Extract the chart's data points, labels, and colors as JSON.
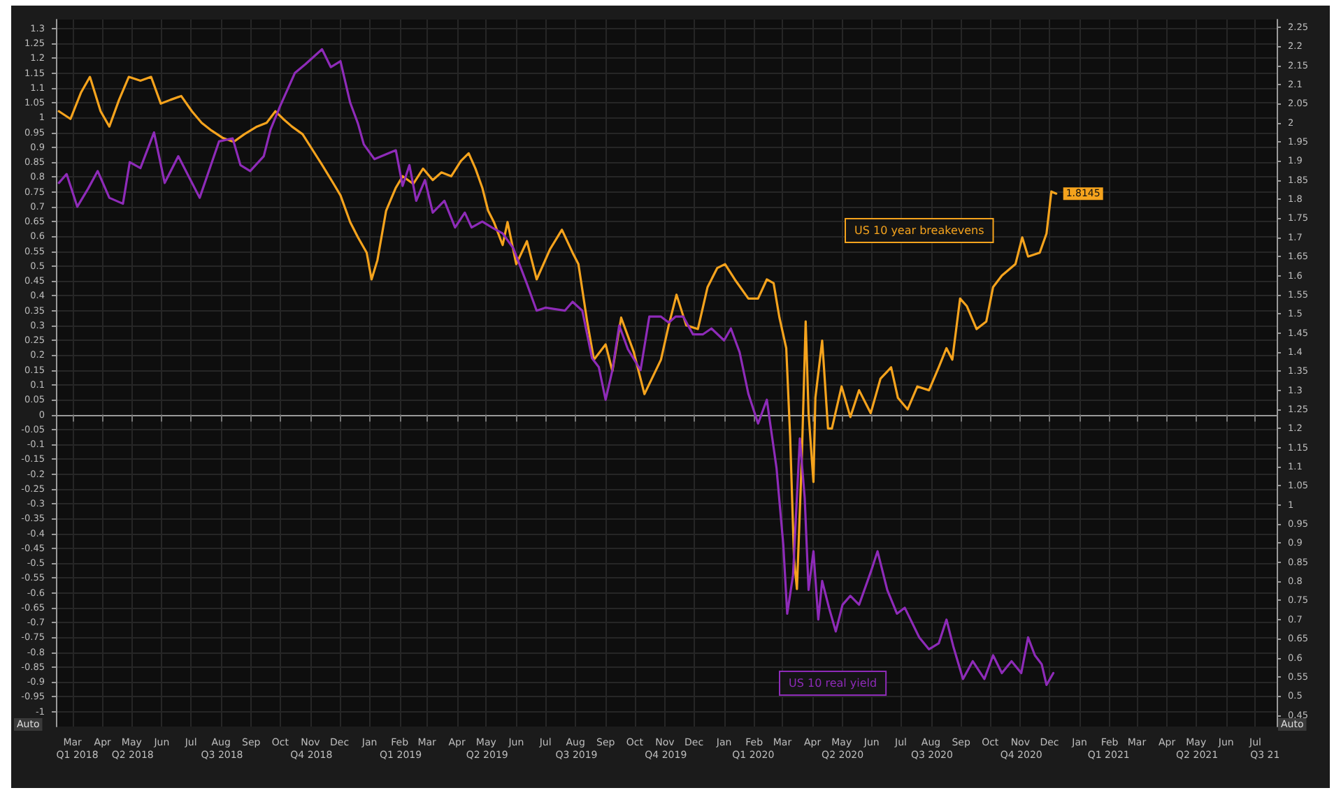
{
  "chart_data": {
    "type": "line",
    "annotations": [
      "Auto",
      "Auto"
    ],
    "xlim": [
      "2018-02-26",
      "2021-08-06"
    ],
    "xticks": [
      {
        "value": "2018-03-15",
        "label": "Mar"
      },
      {
        "value": "2018-04-15",
        "label": "Apr"
      },
      {
        "value": "2018-05-15",
        "label": "May"
      },
      {
        "value": "2018-06-15",
        "label": "Jun"
      },
      {
        "value": "2018-07-15",
        "label": "Jul"
      },
      {
        "value": "2018-08-15",
        "label": "Aug"
      },
      {
        "value": "2018-09-15",
        "label": "Sep"
      },
      {
        "value": "2018-10-15",
        "label": "Oct"
      },
      {
        "value": "2018-11-15",
        "label": "Nov"
      },
      {
        "value": "2018-12-15",
        "label": "Dec"
      },
      {
        "value": "2019-01-15",
        "label": "Jan"
      },
      {
        "value": "2019-02-15",
        "label": "Feb"
      },
      {
        "value": "2019-03-15",
        "label": "Mar"
      },
      {
        "value": "2019-04-15",
        "label": "Apr"
      },
      {
        "value": "2019-05-15",
        "label": "May"
      },
      {
        "value": "2019-06-15",
        "label": "Jun"
      },
      {
        "value": "2019-07-15",
        "label": "Jul"
      },
      {
        "value": "2019-08-15",
        "label": "Aug"
      },
      {
        "value": "2019-09-15",
        "label": "Sep"
      },
      {
        "value": "2019-10-15",
        "label": "Oct"
      },
      {
        "value": "2019-11-15",
        "label": "Nov"
      },
      {
        "value": "2019-12-15",
        "label": "Dec"
      },
      {
        "value": "2020-01-15",
        "label": "Jan"
      },
      {
        "value": "2020-02-15",
        "label": "Feb"
      },
      {
        "value": "2020-03-15",
        "label": "Mar"
      },
      {
        "value": "2020-04-15",
        "label": "Apr"
      },
      {
        "value": "2020-05-15",
        "label": "May"
      },
      {
        "value": "2020-06-15",
        "label": "Jun"
      },
      {
        "value": "2020-07-15",
        "label": "Jul"
      },
      {
        "value": "2020-08-15",
        "label": "Aug"
      },
      {
        "value": "2020-09-15",
        "label": "Sep"
      },
      {
        "value": "2020-10-15",
        "label": "Oct"
      },
      {
        "value": "2020-11-15",
        "label": "Nov"
      },
      {
        "value": "2020-12-15",
        "label": "Dec"
      },
      {
        "value": "2021-01-15",
        "label": "Jan"
      },
      {
        "value": "2021-02-15",
        "label": "Feb"
      },
      {
        "value": "2021-03-15",
        "label": "Mar"
      },
      {
        "value": "2021-04-15",
        "label": "Apr"
      },
      {
        "value": "2021-05-15",
        "label": "May"
      },
      {
        "value": "2021-06-15",
        "label": "Jun"
      },
      {
        "value": "2021-07-15",
        "label": "Jul"
      }
    ],
    "x2lim": [
      "2018-02-26",
      "2021-08-06"
    ],
    "x2ticks": [
      {
        "value": "2018-03-20",
        "label": "Q1 2018"
      },
      {
        "value": "2018-05-16",
        "label": "Q2 2018"
      },
      {
        "value": "2018-08-16",
        "label": "Q3 2018"
      },
      {
        "value": "2018-11-16",
        "label": "Q4 2018"
      },
      {
        "value": "2019-02-16",
        "label": "Q1 2019"
      },
      {
        "value": "2019-05-16",
        "label": "Q2 2019"
      },
      {
        "value": "2019-08-16",
        "label": "Q3 2019"
      },
      {
        "value": "2019-11-16",
        "label": "Q4 2019"
      },
      {
        "value": "2020-02-14",
        "label": "Q1 2020"
      },
      {
        "value": "2020-05-16",
        "label": "Q2 2020"
      },
      {
        "value": "2020-08-16",
        "label": "Q3 2020"
      },
      {
        "value": "2020-11-16",
        "label": "Q4 2020"
      },
      {
        "value": "2021-02-14",
        "label": "Q1 2021"
      },
      {
        "value": "2021-05-16",
        "label": "Q2 2021"
      },
      {
        "value": "2021-07-25",
        "label": "Q3 21"
      }
    ],
    "ylim": [
      -1.05,
      1.33
    ],
    "yticks": [
      -1,
      -0.95,
      -0.9,
      -0.85,
      -0.8,
      -0.75,
      -0.7,
      -0.65,
      -0.6,
      -0.55,
      -0.5,
      -0.45,
      -0.4,
      -0.35,
      -0.3,
      -0.25,
      -0.2,
      -0.15,
      -0.1,
      -0.05,
      0,
      0.05,
      0.1,
      0.15,
      0.2,
      0.25,
      0.3,
      0.35,
      0.4,
      0.45,
      0.5,
      0.55,
      0.6,
      0.65,
      0.7,
      0.75,
      0.8,
      0.85,
      0.9,
      0.95,
      1,
      1.05,
      1.1,
      1.15,
      1.2,
      1.25,
      1.3
    ],
    "y2lim": [
      0.42,
      2.27
    ],
    "y2ticks": [
      0.45,
      0.5,
      0.55,
      0.6,
      0.65,
      0.7,
      0.75,
      0.8,
      0.85,
      0.9,
      0.95,
      1,
      1.05,
      1.1,
      1.15,
      1.2,
      1.25,
      1.3,
      1.35,
      1.4,
      1.45,
      1.5,
      1.55,
      1.6,
      1.65,
      1.7,
      1.75,
      1.8,
      1.85,
      1.9,
      1.95,
      2,
      2.05,
      2.1,
      2.15,
      2.2,
      2.25
    ],
    "grid": true,
    "series": [
      {
        "name": "US 10 year breakevens",
        "color": "#f5a31d",
        "axis": "y2",
        "x": [
          "2018-03-01",
          "2018-03-13",
          "2018-03-24",
          "2018-04-02",
          "2018-04-13",
          "2018-04-22",
          "2018-05-02",
          "2018-05-12",
          "2018-05-24",
          "2018-06-04",
          "2018-06-14",
          "2018-06-24",
          "2018-07-05",
          "2018-07-16",
          "2018-07-26",
          "2018-08-05",
          "2018-08-17",
          "2018-08-28",
          "2018-09-08",
          "2018-09-21",
          "2018-10-01",
          "2018-10-10",
          "2018-10-18",
          "2018-10-27",
          "2018-11-07",
          "2018-11-17",
          "2018-11-27",
          "2018-12-09",
          "2018-12-16",
          "2018-12-26",
          "2019-01-03",
          "2019-01-12",
          "2019-01-17",
          "2019-01-23",
          "2019-02-01",
          "2019-02-11",
          "2019-02-18",
          "2019-03-01",
          "2019-03-11",
          "2019-03-21",
          "2019-03-30",
          "2019-04-09",
          "2019-04-19",
          "2019-04-27",
          "2019-05-04",
          "2019-05-11",
          "2019-05-17",
          "2019-05-23",
          "2019-06-01",
          "2019-06-06",
          "2019-06-15",
          "2019-06-26",
          "2019-07-06",
          "2019-07-20",
          "2019-08-01",
          "2019-08-12",
          "2019-08-18",
          "2019-08-27",
          "2019-09-03",
          "2019-09-15",
          "2019-09-22",
          "2019-10-01",
          "2019-10-14",
          "2019-10-25",
          "2019-11-11",
          "2019-11-19",
          "2019-11-27",
          "2019-12-07",
          "2019-12-19",
          "2019-12-29",
          "2020-01-08",
          "2020-01-16",
          "2020-01-26",
          "2020-02-09",
          "2020-02-19",
          "2020-02-28",
          "2020-03-06",
          "2020-03-12",
          "2020-03-19",
          "2020-03-23",
          "2020-03-27",
          "2020-03-30",
          "2020-04-04",
          "2020-04-08",
          "2020-04-11",
          "2020-04-16",
          "2020-04-18",
          "2020-04-25",
          "2020-05-01",
          "2020-05-05",
          "2020-05-15",
          "2020-05-24",
          "2020-06-02",
          "2020-06-14",
          "2020-06-24",
          "2020-07-05",
          "2020-07-12",
          "2020-07-22",
          "2020-08-01",
          "2020-08-13",
          "2020-08-23",
          "2020-08-31",
          "2020-09-06",
          "2020-09-14",
          "2020-09-21",
          "2020-10-01",
          "2020-10-11",
          "2020-10-18",
          "2020-10-27",
          "2020-11-10",
          "2020-11-17",
          "2020-11-23",
          "2020-12-05",
          "2020-12-12",
          "2020-12-17",
          "2020-12-22"
        ],
        "values": [
          2.03,
          2.01,
          2.08,
          2.12,
          2.03,
          1.99,
          2.06,
          2.12,
          2.11,
          2.12,
          2.05,
          2.06,
          2.07,
          2.03,
          2.0,
          1.98,
          1.96,
          1.95,
          1.97,
          1.99,
          2.0,
          2.03,
          2.01,
          1.99,
          1.97,
          1.93,
          1.89,
          1.84,
          1.81,
          1.74,
          1.7,
          1.66,
          1.59,
          1.64,
          1.77,
          1.83,
          1.86,
          1.84,
          1.88,
          1.85,
          1.87,
          1.86,
          1.9,
          1.92,
          1.88,
          1.83,
          1.77,
          1.74,
          1.68,
          1.74,
          1.63,
          1.69,
          1.59,
          1.67,
          1.72,
          1.66,
          1.63,
          1.48,
          1.38,
          1.42,
          1.35,
          1.49,
          1.4,
          1.29,
          1.38,
          1.47,
          1.55,
          1.47,
          1.46,
          1.57,
          1.62,
          1.63,
          1.59,
          1.54,
          1.54,
          1.59,
          1.58,
          1.49,
          1.41,
          1.18,
          0.86,
          0.78,
          1.12,
          1.48,
          1.24,
          1.06,
          1.28,
          1.43,
          1.2,
          1.2,
          1.31,
          1.23,
          1.3,
          1.24,
          1.33,
          1.36,
          1.28,
          1.25,
          1.31,
          1.3,
          1.36,
          1.41,
          1.38,
          1.54,
          1.52,
          1.46,
          1.48,
          1.57,
          1.6,
          1.63,
          1.7,
          1.65,
          1.66,
          1.71,
          1.82,
          1.8145
        ],
        "value_labels": [
          null,
          null,
          null,
          null,
          null,
          null,
          null,
          null,
          null,
          null,
          null,
          null,
          null,
          null,
          null,
          null,
          null,
          null,
          null,
          null,
          null,
          null,
          null,
          null,
          null,
          null,
          null,
          null,
          null,
          null,
          null,
          null,
          null,
          null,
          null,
          null,
          null,
          null,
          null,
          null,
          null,
          null,
          null,
          null,
          null,
          null,
          null,
          null,
          null,
          null,
          null,
          null,
          null,
          null,
          null,
          null,
          null,
          null,
          null,
          null,
          null,
          null,
          null,
          null,
          null,
          null,
          null,
          null,
          null,
          null,
          null,
          null,
          null,
          null,
          null,
          null,
          null,
          null,
          null,
          null,
          null,
          null,
          null,
          null,
          null,
          null,
          null,
          null,
          null,
          null,
          null,
          null,
          null,
          null,
          null,
          null,
          null,
          null,
          null,
          null,
          null,
          null,
          null,
          null,
          null,
          null,
          null,
          null,
          null,
          null,
          null,
          null,
          null,
          null,
          null,
          "1.8145"
        ]
      },
      {
        "name": "US 10 real yield",
        "color": "#8e2bb8",
        "x": [
          "2018-03-01",
          "2018-03-09",
          "2018-03-20",
          "2018-03-31",
          "2018-04-10",
          "2018-04-22",
          "2018-05-06",
          "2018-05-13",
          "2018-05-24",
          "2018-06-07",
          "2018-06-18",
          "2018-07-02",
          "2018-07-24",
          "2018-08-13",
          "2018-08-27",
          "2018-09-04",
          "2018-09-14",
          "2018-09-28",
          "2018-10-05",
          "2018-10-15",
          "2018-10-30",
          "2018-11-10",
          "2018-11-27",
          "2018-12-06",
          "2018-12-16",
          "2018-12-26",
          "2019-01-03",
          "2019-01-09",
          "2019-01-20",
          "2019-02-11",
          "2019-02-18",
          "2019-02-25",
          "2019-03-04",
          "2019-03-13",
          "2019-03-21",
          "2019-04-02",
          "2019-04-13",
          "2019-04-23",
          "2019-04-30",
          "2019-05-11",
          "2019-05-21",
          "2019-06-01",
          "2019-06-12",
          "2019-06-26",
          "2019-07-06",
          "2019-07-15",
          "2019-08-04",
          "2019-08-12",
          "2019-08-22",
          "2019-09-01",
          "2019-09-08",
          "2019-09-15",
          "2019-09-22",
          "2019-09-29",
          "2019-10-08",
          "2019-10-21",
          "2019-10-30",
          "2019-11-11",
          "2019-11-19",
          "2019-11-26",
          "2019-12-04",
          "2019-12-14",
          "2019-12-24",
          "2020-01-02",
          "2020-01-15",
          "2020-01-22",
          "2020-01-31",
          "2020-02-09",
          "2020-02-19",
          "2020-02-28",
          "2020-03-09",
          "2020-03-16",
          "2020-03-20",
          "2020-03-26",
          "2020-04-02",
          "2020-04-07",
          "2020-04-11",
          "2020-04-16",
          "2020-04-21",
          "2020-04-25",
          "2020-05-02",
          "2020-05-09",
          "2020-05-16",
          "2020-05-24",
          "2020-06-02",
          "2020-06-14",
          "2020-06-21",
          "2020-07-01",
          "2020-07-11",
          "2020-07-19",
          "2020-08-03",
          "2020-08-13",
          "2020-08-23",
          "2020-08-31",
          "2020-09-07",
          "2020-09-17",
          "2020-09-27",
          "2020-10-09",
          "2020-10-18",
          "2020-10-27",
          "2020-11-06",
          "2020-11-16",
          "2020-11-23",
          "2020-11-30",
          "2020-12-07",
          "2020-12-12",
          "2020-12-19"
        ],
        "values": [
          0.78,
          0.81,
          0.7,
          0.76,
          0.82,
          0.73,
          0.71,
          0.85,
          0.83,
          0.95,
          0.78,
          0.87,
          0.73,
          0.92,
          0.93,
          0.84,
          0.82,
          0.87,
          0.96,
          1.04,
          1.15,
          1.18,
          1.23,
          1.17,
          1.19,
          1.05,
          0.98,
          0.91,
          0.86,
          0.89,
          0.77,
          0.84,
          0.72,
          0.79,
          0.68,
          0.72,
          0.63,
          0.68,
          0.63,
          0.65,
          0.63,
          0.61,
          0.56,
          0.44,
          0.35,
          0.36,
          0.35,
          0.38,
          0.35,
          0.19,
          0.16,
          0.05,
          0.15,
          0.3,
          0.22,
          0.15,
          0.33,
          0.33,
          0.31,
          0.33,
          0.33,
          0.27,
          0.27,
          0.29,
          0.25,
          0.29,
          0.21,
          0.07,
          -0.03,
          0.05,
          -0.18,
          -0.44,
          -0.67,
          -0.54,
          -0.08,
          -0.28,
          -0.59,
          -0.46,
          -0.69,
          -0.56,
          -0.65,
          -0.73,
          -0.64,
          -0.61,
          -0.64,
          -0.53,
          -0.46,
          -0.59,
          -0.67,
          -0.65,
          -0.75,
          -0.79,
          -0.77,
          -0.69,
          -0.78,
          -0.89,
          -0.83,
          -0.89,
          -0.81,
          -0.87,
          -0.83,
          -0.87,
          -0.75,
          -0.81,
          -0.84,
          -0.91,
          -0.87
        ]
      }
    ]
  }
}
